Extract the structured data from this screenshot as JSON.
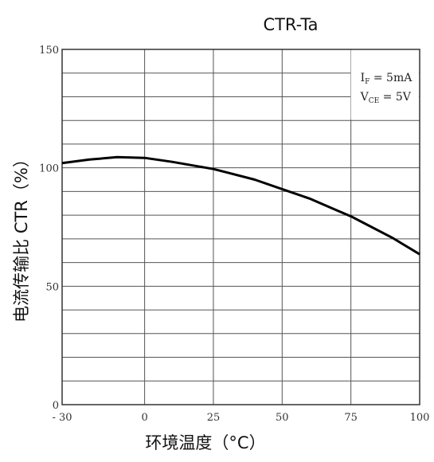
{
  "chart_data": {
    "type": "line",
    "title": "CTR-Ta",
    "xlabel": "环境温度（°C）",
    "ylabel": "电流传输比 CTR（%）",
    "xlim": [
      -30,
      100
    ],
    "ylim": [
      0,
      150
    ],
    "x_ticks": [
      -30,
      0,
      25,
      50,
      75,
      100
    ],
    "x_tick_labels": [
      "- 30",
      "0",
      "25",
      "50",
      "75",
      "100"
    ],
    "y_ticks": [
      0,
      50,
      100,
      150
    ],
    "y_tick_labels": [
      "0",
      "50",
      "100",
      "150"
    ],
    "grid": true,
    "series": [
      {
        "x": [
          -30,
          -20,
          -10,
          0,
          10,
          20,
          25,
          30,
          40,
          50,
          60,
          70,
          75,
          80,
          90,
          100
        ],
        "y": [
          102,
          103.5,
          104.5,
          104.2,
          102.5,
          100.5,
          99.5,
          98,
          95,
          91,
          87,
          82,
          79.5,
          76.5,
          70.5,
          63.5
        ]
      }
    ],
    "annotations": [
      {
        "main": "I",
        "sub": "F",
        "rest": " = 5mA"
      },
      {
        "main": "V",
        "sub": "CE",
        "rest": " = 5V"
      }
    ],
    "line_color": "#000000",
    "grid_color": "#555555"
  }
}
